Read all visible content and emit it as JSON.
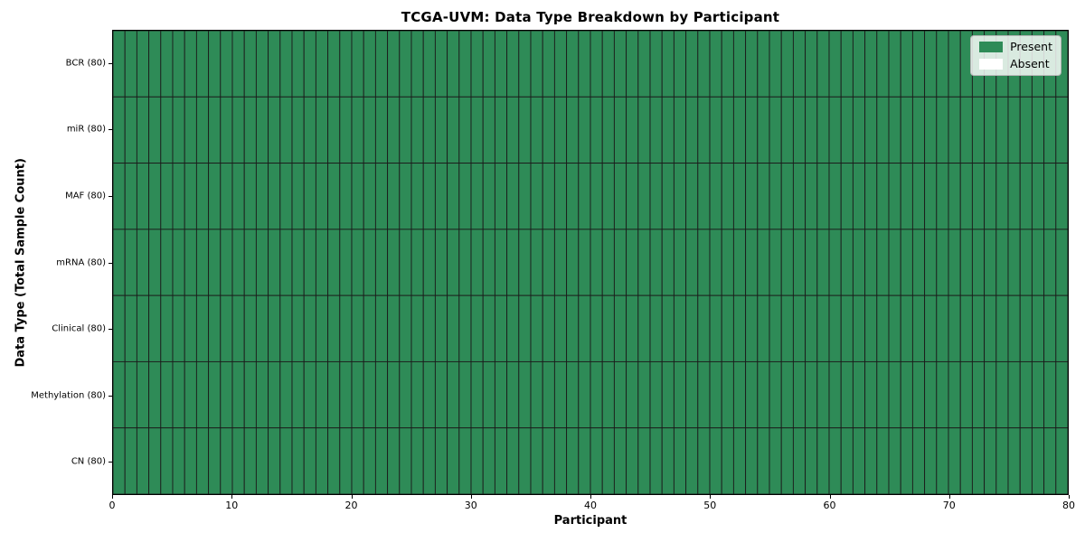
{
  "chart_data": {
    "type": "heatmap",
    "title": "TCGA-UVM: Data Type Breakdown by Participant",
    "xlabel": "Participant",
    "ylabel": "Data Type (Total Sample Count)",
    "xlim": [
      0,
      80
    ],
    "x_ticks": [
      0,
      10,
      20,
      30,
      40,
      50,
      60,
      70,
      80
    ],
    "n_participants": 80,
    "rows": [
      {
        "label": "BCR (80)",
        "total": 80,
        "present": 80
      },
      {
        "label": "miR (80)",
        "total": 80,
        "present": 80
      },
      {
        "label": "MAF (80)",
        "total": 80,
        "present": 80
      },
      {
        "label": "mRNA (80)",
        "total": 80,
        "present": 80
      },
      {
        "label": "Clinical (80)",
        "total": 80,
        "present": 80
      },
      {
        "label": "Methylation (80)",
        "total": 80,
        "present": 80
      },
      {
        "label": "CN (80)",
        "total": 80,
        "present": 80
      }
    ],
    "legend": [
      {
        "label": "Present",
        "color": "#2e8b57"
      },
      {
        "label": "Absent",
        "color": "#ffffff"
      }
    ],
    "colors": {
      "cell_edge": "#1b1b1b",
      "axis_spine": "#000000",
      "background": "#ffffff"
    },
    "legend_position": "upper right",
    "grid": "cell-borders"
  }
}
